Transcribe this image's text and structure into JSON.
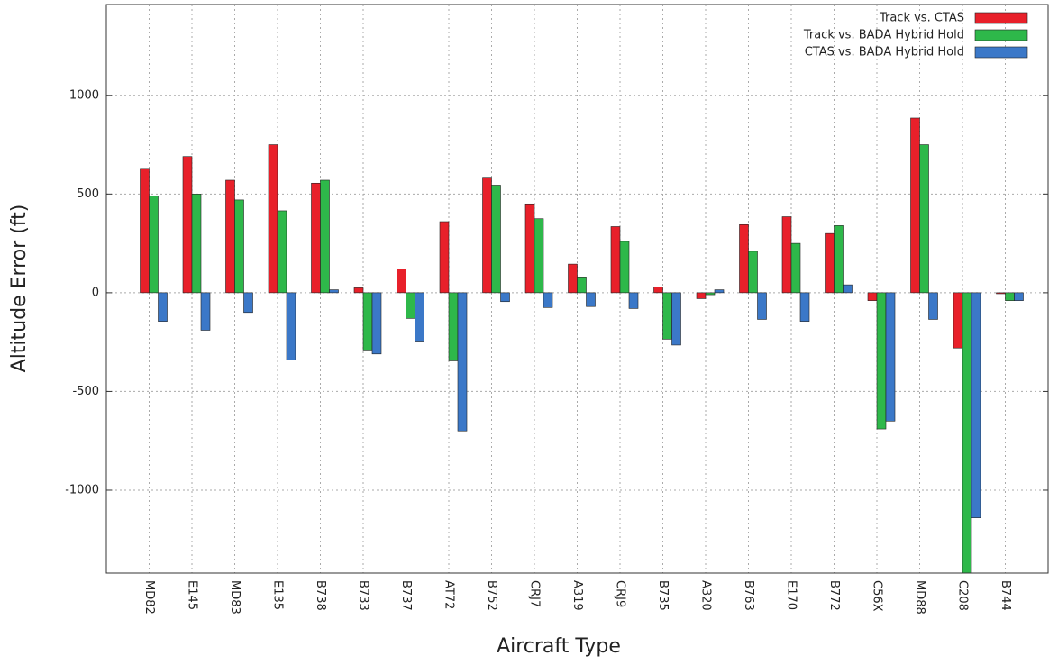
{
  "chart_data": {
    "type": "bar",
    "x_label": "Aircraft Type",
    "y_label": "Altitude Error (ft)",
    "categories": [
      "MD82",
      "E145",
      "MD83",
      "E135",
      "B738",
      "B733",
      "B737",
      "AT72",
      "B752",
      "CRJ7",
      "A319",
      "CRJ9",
      "B735",
      "A320",
      "B763",
      "E170",
      "B772",
      "C56X",
      "MD88",
      "C208",
      "B744"
    ],
    "series": [
      {
        "name": "Track vs. CTAS",
        "color": "#e8202a",
        "values": [
          630,
          690,
          570,
          750,
          555,
          25,
          120,
          360,
          585,
          450,
          145,
          335,
          30,
          -30,
          345,
          385,
          300,
          -40,
          885,
          -280,
          -5
        ]
      },
      {
        "name": "Track vs. BADA Hybrid Hold",
        "color": "#2eb84a",
        "values": [
          490,
          500,
          470,
          415,
          570,
          -290,
          -130,
          -345,
          545,
          375,
          80,
          260,
          -235,
          -10,
          210,
          250,
          340,
          -690,
          750,
          -1420,
          -40
        ]
      },
      {
        "name": "CTAS vs. BADA Hybrid Hold",
        "color": "#3b78c8",
        "values": [
          -145,
          -190,
          -100,
          -340,
          15,
          -310,
          -245,
          -700,
          -45,
          -75,
          -70,
          -80,
          -265,
          15,
          -135,
          -145,
          40,
          -650,
          -135,
          -1140,
          -40
        ]
      }
    ],
    "ylim": [
      -1420,
      1460
    ],
    "yticks": [
      -1000,
      -500,
      0,
      500,
      1000
    ],
    "grid": true,
    "legend": "top-right"
  }
}
